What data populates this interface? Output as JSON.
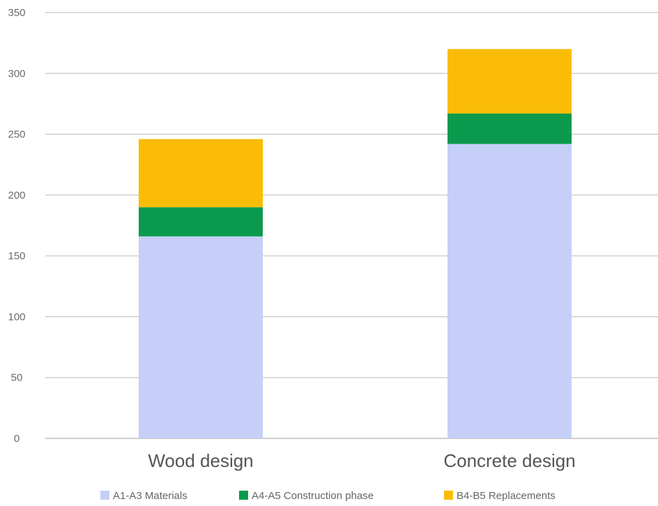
{
  "chart_data": {
    "type": "bar",
    "stacked": true,
    "title": "",
    "xlabel": "",
    "ylabel": "",
    "categories": [
      "Wood design",
      "Concrete design"
    ],
    "series": [
      {
        "name": "A1-A3 Materials",
        "color": "#c5cff7",
        "values": [
          166,
          242
        ]
      },
      {
        "name": "A4-A5 Construction phase",
        "color": "#0b9a4d",
        "values": [
          24,
          25
        ]
      },
      {
        "name": "B4-B5 Replacements",
        "color": "#fbbc05",
        "values": [
          56,
          53
        ]
      }
    ],
    "ylim": [
      0,
      350
    ],
    "yticks": [
      0,
      50,
      100,
      150,
      200,
      250,
      300,
      350
    ],
    "grid": true,
    "legend_position": "bottom"
  }
}
